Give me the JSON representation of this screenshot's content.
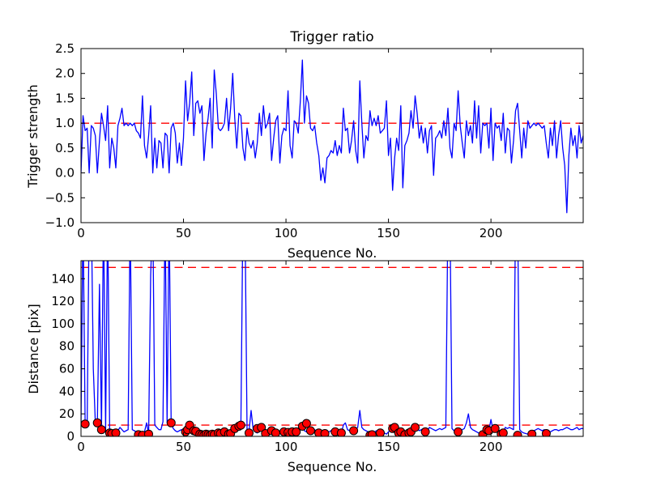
{
  "figure": {
    "background": "#ffffff",
    "line_color": "#0000ff",
    "threshold_color": "#ff0000",
    "marker_face": "#ff0000",
    "marker_edge": "#000000"
  },
  "chart_data": [
    {
      "type": "line",
      "title": "Trigger ratio",
      "xlabel": "Sequence No.",
      "ylabel": "Trigger strength",
      "xlim": [
        0,
        245
      ],
      "ylim": [
        -1.0,
        2.5
      ],
      "grid": false,
      "legend": "none",
      "xticks": [
        0,
        50,
        100,
        150,
        200
      ],
      "xtick_labels": [
        "0",
        "50",
        "100",
        "150",
        "200"
      ],
      "yticks": [
        -1.0,
        -0.5,
        0.0,
        0.5,
        1.0,
        1.5,
        2.0,
        2.5
      ],
      "ytick_labels": [
        "−1.0",
        "−0.5",
        "0.0",
        "0.5",
        "1.0",
        "1.5",
        "2.0",
        "2.5"
      ],
      "hlines": [
        {
          "y": 1.0,
          "color": "#ff0000",
          "style": "dashed"
        }
      ],
      "series": [
        {
          "name": "trigger-strength",
          "color": "#0000ff",
          "x_start": 0,
          "x_step": 1,
          "values": [
            0.0,
            1.15,
            0.85,
            0.9,
            0.0,
            0.95,
            0.9,
            0.75,
            0.0,
            0.65,
            1.2,
            0.95,
            0.65,
            1.35,
            0.1,
            0.7,
            0.5,
            0.1,
            0.95,
            1.1,
            1.3,
            0.95,
            1.0,
            0.95,
            1.0,
            0.95,
            1.0,
            0.85,
            0.8,
            0.7,
            1.55,
            0.55,
            0.3,
            0.75,
            1.35,
            0.0,
            0.7,
            0.1,
            0.65,
            0.6,
            0.1,
            0.8,
            0.75,
            0.0,
            0.9,
            1.0,
            0.8,
            0.2,
            0.6,
            0.15,
            0.7,
            1.85,
            1.05,
            1.4,
            2.03,
            0.75,
            1.4,
            1.45,
            1.2,
            1.35,
            0.25,
            0.8,
            1.1,
            1.5,
            0.5,
            2.07,
            1.6,
            0.9,
            0.85,
            0.9,
            1.0,
            1.5,
            0.85,
            1.3,
            2.0,
            1.1,
            0.5,
            1.2,
            1.15,
            0.5,
            0.25,
            0.9,
            0.6,
            0.5,
            0.65,
            0.3,
            0.6,
            1.2,
            0.75,
            1.35,
            0.9,
            1.0,
            1.2,
            0.25,
            0.7,
            1.05,
            1.15,
            0.2,
            0.75,
            0.9,
            0.85,
            1.65,
            0.55,
            0.3,
            1.05,
            1.0,
            0.8,
            1.45,
            2.27,
            1.0,
            1.55,
            1.4,
            0.9,
            0.85,
            0.95,
            0.6,
            0.35,
            -0.15,
            0.1,
            -0.2,
            0.3,
            0.35,
            0.45,
            0.4,
            0.65,
            0.35,
            0.55,
            0.4,
            1.3,
            0.85,
            0.9,
            0.4,
            0.65,
            1.05,
            0.45,
            0.2,
            1.85,
            1.0,
            0.3,
            0.75,
            0.65,
            1.25,
            0.95,
            1.1,
            0.95,
            1.15,
            0.8,
            0.85,
            0.9,
            1.45,
            0.35,
            0.7,
            -0.35,
            0.3,
            0.7,
            0.45,
            1.35,
            -0.3,
            0.55,
            0.65,
            0.8,
            1.25,
            0.9,
            1.55,
            1.2,
            0.7,
            0.95,
            0.6,
            0.9,
            0.4,
            0.85,
            0.95,
            -0.05,
            0.7,
            0.75,
            0.85,
            0.7,
            1.05,
            0.75,
            1.3,
            0.5,
            0.3,
            1.0,
            0.85,
            1.65,
            0.95,
            0.6,
            0.3,
            1.05,
            0.75,
            0.95,
            0.6,
            1.45,
            0.7,
            1.35,
            0.4,
            1.0,
            0.95,
            1.0,
            0.5,
            1.3,
            0.25,
            1.0,
            0.9,
            0.95,
            0.65,
            1.2,
            0.4,
            0.9,
            0.85,
            0.2,
            0.65,
            1.25,
            1.4,
            0.85,
            0.3,
            0.9,
            0.5,
            1.05,
            0.9,
            0.95,
            1.0,
            0.95,
            1.0,
            0.95,
            0.9,
            0.95,
            0.6,
            0.3,
            0.9,
            0.55,
            1.05,
            0.3,
            0.75,
            1.05,
            0.5,
            0.15,
            -0.8,
            0.35,
            0.9,
            0.55,
            0.75,
            0.3,
            0.95,
            0.6,
            0.75
          ]
        }
      ]
    },
    {
      "type": "line",
      "title": "",
      "xlabel": "Sequence No.",
      "ylabel": "Distance [pix]",
      "xlim": [
        0,
        245
      ],
      "ylim": [
        0,
        156
      ],
      "grid": false,
      "legend": "none",
      "xticks": [
        0,
        50,
        100,
        150,
        200
      ],
      "xtick_labels": [
        "0",
        "50",
        "100",
        "150",
        "200"
      ],
      "yticks": [
        0,
        20,
        40,
        60,
        80,
        100,
        120,
        140
      ],
      "ytick_labels": [
        "0",
        "20",
        "40",
        "60",
        "80",
        "100",
        "120",
        "140"
      ],
      "hlines": [
        {
          "y": 150,
          "color": "#ff0000",
          "style": "dashed"
        },
        {
          "y": 10,
          "color": "#ff0000",
          "style": "dashed"
        }
      ],
      "series": [
        {
          "name": "distance",
          "color": "#0000ff",
          "x_start": 0,
          "x_step": 1,
          "values": [
            10,
            200,
            11,
            8,
            200,
            200,
            60,
            12,
            12,
            135,
            6,
            200,
            5,
            200,
            3,
            2.5,
            3,
            3,
            5,
            8,
            6,
            4,
            5,
            6,
            200,
            6,
            5,
            4,
            1.5,
            3,
            1,
            4,
            12,
            2,
            143,
            200,
            10,
            8,
            6,
            6,
            13,
            200,
            12,
            200,
            12,
            7,
            5,
            4,
            5,
            6,
            5,
            4,
            6,
            10,
            5,
            5,
            4.5,
            3,
            2,
            1.5,
            1,
            2,
            1.5,
            1,
            2,
            1.5,
            2,
            3,
            2.5,
            3,
            4,
            3,
            2,
            2.5,
            4,
            7,
            6,
            9,
            10,
            200,
            200,
            6,
            5,
            23,
            6,
            4,
            3,
            5,
            8,
            4,
            2.5,
            3,
            4,
            5,
            4,
            3,
            2,
            3,
            3.5,
            4,
            3,
            3.5,
            4,
            4,
            4,
            5,
            6,
            8,
            11,
            5,
            4,
            5,
            6,
            7,
            6,
            4,
            3,
            4,
            3,
            2.5,
            3,
            4,
            5,
            4,
            4,
            3,
            4,
            3,
            10,
            12,
            6,
            5,
            6,
            5,
            6,
            8,
            23,
            8,
            6,
            5,
            4,
            1,
            1.5,
            3,
            5,
            4,
            3,
            2,
            3,
            2,
            4,
            6,
            7,
            8,
            6,
            3,
            4,
            3,
            1.5,
            2,
            3,
            4,
            3,
            8,
            7,
            5,
            6,
            7,
            4,
            5,
            8,
            7,
            6,
            5,
            6,
            7,
            6,
            7,
            8,
            200,
            200,
            7,
            5,
            4,
            4,
            5,
            6,
            7,
            12,
            20,
            8,
            6,
            5,
            4,
            3,
            2,
            1.5,
            3,
            6,
            5,
            15,
            5,
            7,
            4,
            3,
            2,
            3,
            8,
            7,
            8,
            7,
            6,
            200,
            200,
            6,
            4,
            3,
            2.5,
            2,
            3,
            4,
            5,
            6,
            7,
            6,
            5,
            6,
            2.5,
            3,
            4,
            5,
            6,
            6,
            5,
            6,
            6,
            7,
            8,
            7,
            6,
            6,
            7,
            8,
            6,
            7,
            7
          ]
        }
      ],
      "scatter": {
        "name": "detected-points",
        "face_color": "#ff0000",
        "edge_color": "#000000",
        "points": [
          [
            2,
            11
          ],
          [
            8,
            12
          ],
          [
            10,
            6
          ],
          [
            14,
            3
          ],
          [
            15,
            2.5
          ],
          [
            17,
            3
          ],
          [
            28,
            1.5
          ],
          [
            30,
            1
          ],
          [
            33,
            2
          ],
          [
            44,
            12
          ],
          [
            51,
            4
          ],
          [
            52,
            6
          ],
          [
            53,
            10
          ],
          [
            55,
            5
          ],
          [
            56,
            4.5
          ],
          [
            58,
            2
          ],
          [
            59,
            1.5
          ],
          [
            60,
            1
          ],
          [
            61,
            2
          ],
          [
            62,
            1.5
          ],
          [
            63,
            1
          ],
          [
            64,
            2
          ],
          [
            65,
            1.5
          ],
          [
            67,
            3
          ],
          [
            68,
            2.5
          ],
          [
            70,
            4
          ],
          [
            72,
            2
          ],
          [
            73,
            2.5
          ],
          [
            75,
            7
          ],
          [
            77,
            9
          ],
          [
            78,
            10
          ],
          [
            82,
            3
          ],
          [
            86,
            7
          ],
          [
            88,
            8
          ],
          [
            90,
            2.5
          ],
          [
            93,
            5
          ],
          [
            95,
            3
          ],
          [
            99,
            4
          ],
          [
            101,
            3.5
          ],
          [
            103,
            4
          ],
          [
            105,
            4
          ],
          [
            108,
            9
          ],
          [
            110,
            11.5
          ],
          [
            112,
            5
          ],
          [
            116,
            3
          ],
          [
            119,
            2.5
          ],
          [
            124,
            4
          ],
          [
            127,
            3
          ],
          [
            133,
            5
          ],
          [
            141,
            1
          ],
          [
            142,
            1.5
          ],
          [
            146,
            3
          ],
          [
            152,
            7
          ],
          [
            153,
            8
          ],
          [
            155,
            3
          ],
          [
            156,
            4
          ],
          [
            158,
            1.5
          ],
          [
            160,
            3
          ],
          [
            161,
            4
          ],
          [
            163,
            8
          ],
          [
            168,
            4
          ],
          [
            184,
            4
          ],
          [
            196,
            1.5
          ],
          [
            198,
            6
          ],
          [
            199,
            5
          ],
          [
            202,
            7
          ],
          [
            205,
            2
          ],
          [
            206,
            3
          ],
          [
            213,
            1
          ],
          [
            220,
            2
          ],
          [
            227,
            2.5
          ]
        ]
      }
    }
  ]
}
